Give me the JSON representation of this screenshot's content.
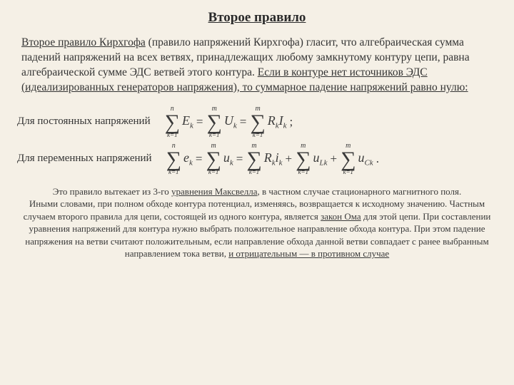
{
  "title": "Второе правило",
  "intro_html": "<span class='ul'>Второе правило Кирхгофа</span> (правило напряжений Кирхгофа) гласит, что алгебраическая сумма падений напряжений на всех ветвях, принадлежащих любому замкнутому контуру цепи, равна алгебраической сумме ЭДС ветвей этого контура. <span class='ul'>Если в контуре нет источников ЭДС (идеализированных генераторов напряжения), то суммарное падение напряжений равно нулю:</span>",
  "eq1": {
    "label": "Для постоянных напряжений",
    "sums": [
      {
        "upper": "n",
        "lower": "k=1",
        "term": "E<sub>k</sub>"
      },
      {
        "upper": "m",
        "lower": "k=1",
        "term": "U<sub>k</sub>"
      },
      {
        "upper": "m",
        "lower": "k=1",
        "term": "R<sub>k</sub>I<sub>k</sub>"
      }
    ],
    "tail": ";"
  },
  "eq2": {
    "label": "Для переменных напряжений",
    "sums": [
      {
        "upper": "n",
        "lower": "k=1",
        "term": "e<sub>k</sub>"
      },
      {
        "upper": "m",
        "lower": "k=1",
        "term": "u<sub>k</sub>"
      },
      {
        "upper": "m",
        "lower": "k=1",
        "term": "R<sub>k</sub>i<sub>k</sub>"
      },
      {
        "upper": "m",
        "lower": "k=1",
        "term": "u<sub>Lk</sub>"
      },
      {
        "upper": "m",
        "lower": "k=1",
        "term": "u<sub>Ck</sub>"
      }
    ],
    "tail": "."
  },
  "footer_html": "Это правило вытекает из 3-го <span class='ul'>уравнения Максвелла</span>, в частном случае стационарного магнитного поля.<br>Иными словами, при полном обходе контура потенциал, изменяясь, возвращается к исходному значению. Частным случаем второго правила для цепи, состоящей из одного контура, является <span class='ul'>закон Ома</span> для этой цепи. При составлении уравнения напряжений для контура нужно выбрать положительное направление обхода контура. При этом падение напряжения на ветви считают положительным, если направление обхода данной ветви совпадает с ранее выбранным направлением тока ветви, <span class='ul'>и отрицательным — в противном случае</span>",
  "style": {
    "background": "#f5f0e6",
    "text_color": "#3a3a3a",
    "title_fontsize": 19,
    "intro_fontsize": 15.5,
    "label_fontsize": 15,
    "math_fontsize": 18,
    "sigma_fontsize": 30,
    "footer_fontsize": 13
  }
}
